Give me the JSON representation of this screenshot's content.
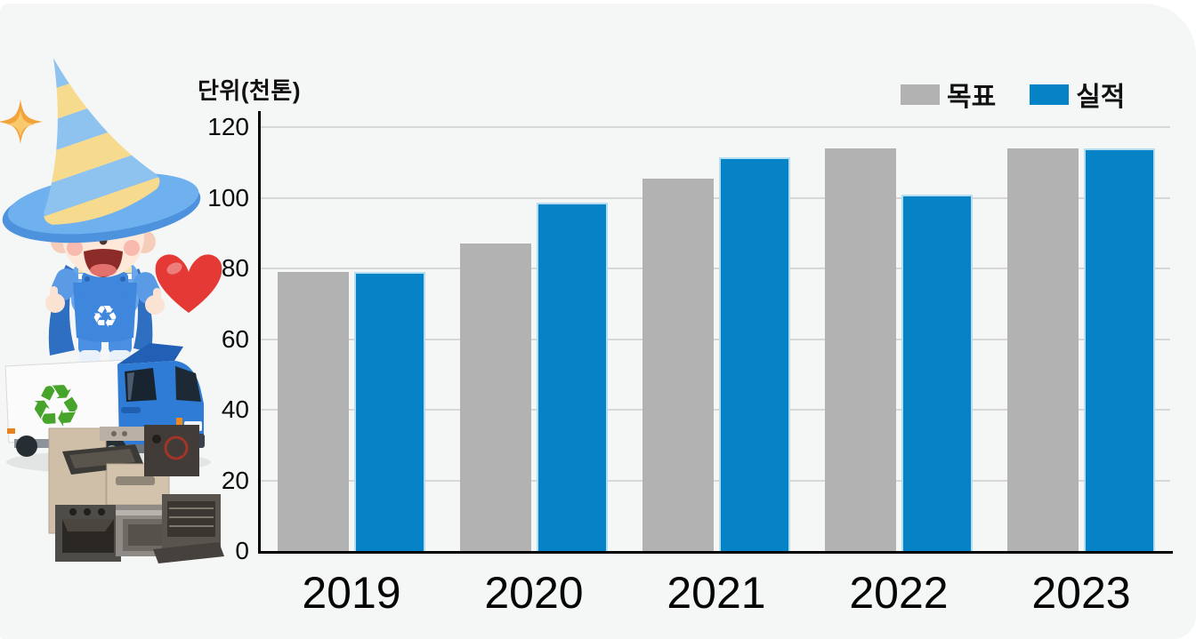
{
  "page": {
    "background_color": "#ffffff",
    "card_color": "#f5f6f6"
  },
  "chart_data": {
    "type": "bar",
    "title": "단위(천톤)",
    "xlabel": "",
    "ylabel": "단위(천톤)",
    "categories": [
      "2019",
      "2020",
      "2021",
      "2022",
      "2023"
    ],
    "series": [
      {
        "name": "목표",
        "color": "#b2b2b2",
        "values": [
          79,
          87,
          105.5,
          114,
          114
        ]
      },
      {
        "name": "실적",
        "color": "#0683c6",
        "values": [
          79,
          98.5,
          111.5,
          101,
          114
        ]
      }
    ],
    "ylim": [
      0,
      120
    ],
    "yticks": [
      0,
      20,
      40,
      60,
      80,
      100,
      120
    ],
    "grid": true,
    "gridline_color": "#d7d7d7",
    "axis_color": "#000000",
    "legend_position": "top-right"
  },
  "mascot": {
    "elements": [
      "sparkle-star",
      "wizard-character",
      "heart",
      "recycling-truck",
      "appliance-pile"
    ],
    "heart_color": "#e53935",
    "recycle_symbol_color": "#46a42b",
    "truck_cab_color": "#2e7cd6"
  }
}
